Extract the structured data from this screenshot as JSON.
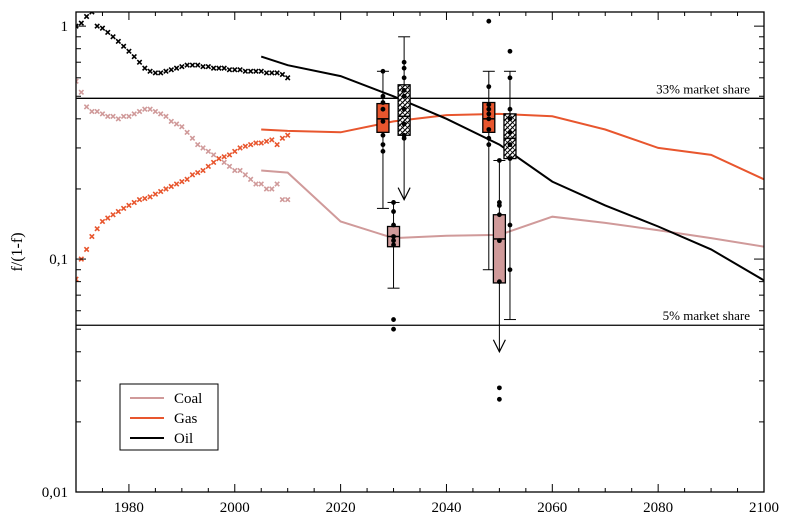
{
  "chart_data": {
    "type": "line",
    "title": "",
    "xlabel": "",
    "ylabel": "f/(1-f)",
    "xlim": [
      1970,
      2100
    ],
    "ylim": [
      0.01,
      1.15
    ],
    "yscale": "log",
    "grid": false,
    "legend_position": "bottom-left",
    "x_ticks": [
      1980,
      2000,
      2020,
      2040,
      2060,
      2080,
      2100
    ],
    "y_ticks": [
      {
        "value": 1,
        "label": "1"
      },
      {
        "value": 0.1,
        "label": "0,1"
      },
      {
        "value": 0.01,
        "label": "0,01"
      }
    ],
    "colors": {
      "Coal": "#d09a9a",
      "Gas": "#e8562e",
      "Oil": "#000000"
    },
    "hlines": [
      {
        "y": 0.49,
        "label": "33% market share"
      },
      {
        "y": 0.052,
        "label": "5% market share"
      }
    ],
    "series": [
      {
        "name": "Coal",
        "color": "#d09a9a",
        "x": [
          2005,
          2010,
          2020,
          2030,
          2040,
          2050,
          2060,
          2070,
          2080,
          2090,
          2100
        ],
        "y": [
          0.24,
          0.235,
          0.145,
          0.123,
          0.126,
          0.127,
          0.152,
          0.143,
          0.133,
          0.123,
          0.113
        ]
      },
      {
        "name": "Gas",
        "color": "#e8562e",
        "x": [
          2005,
          2010,
          2020,
          2030,
          2040,
          2050,
          2060,
          2070,
          2080,
          2090,
          2100
        ],
        "y": [
          0.36,
          0.355,
          0.35,
          0.39,
          0.415,
          0.42,
          0.41,
          0.36,
          0.3,
          0.28,
          0.22
        ]
      },
      {
        "name": "Oil",
        "color": "#000000",
        "x": [
          2005,
          2010,
          2020,
          2030,
          2040,
          2050,
          2060,
          2070,
          2080,
          2090,
          2100
        ],
        "y": [
          0.74,
          0.68,
          0.61,
          0.5,
          0.4,
          0.31,
          0.215,
          0.17,
          0.138,
          0.11,
          0.081
        ]
      }
    ],
    "historical": [
      {
        "name": "Coal",
        "color": "#d09a9a",
        "x": [
          1970,
          1971,
          1972,
          1973,
          1974,
          1975,
          1976,
          1977,
          1978,
          1979,
          1980,
          1981,
          1982,
          1983,
          1984,
          1985,
          1986,
          1987,
          1988,
          1989,
          1990,
          1991,
          1992,
          1993,
          1994,
          1995,
          1996,
          1997,
          1998,
          1999,
          2000,
          2001,
          2002,
          2003,
          2004,
          2005,
          2006,
          2007,
          2008,
          2009,
          2010
        ],
        "y": [
          0.58,
          0.52,
          0.45,
          0.43,
          0.43,
          0.42,
          0.41,
          0.41,
          0.4,
          0.41,
          0.41,
          0.42,
          0.43,
          0.44,
          0.44,
          0.43,
          0.42,
          0.41,
          0.39,
          0.38,
          0.37,
          0.35,
          0.33,
          0.31,
          0.3,
          0.29,
          0.28,
          0.27,
          0.26,
          0.25,
          0.24,
          0.24,
          0.23,
          0.22,
          0.21,
          0.21,
          0.2,
          0.2,
          0.21,
          0.18,
          0.18
        ]
      },
      {
        "name": "Gas",
        "color": "#e8562e",
        "x": [
          1970,
          1971,
          1972,
          1973,
          1974,
          1975,
          1976,
          1977,
          1978,
          1979,
          1980,
          1981,
          1982,
          1983,
          1984,
          1985,
          1986,
          1987,
          1988,
          1989,
          1990,
          1991,
          1992,
          1993,
          1994,
          1995,
          1996,
          1997,
          1998,
          1999,
          2000,
          2001,
          2002,
          2003,
          2004,
          2005,
          2006,
          2007,
          2008,
          2009,
          2010
        ],
        "y": [
          0.082,
          0.1,
          0.11,
          0.125,
          0.135,
          0.145,
          0.15,
          0.155,
          0.16,
          0.165,
          0.17,
          0.175,
          0.18,
          0.182,
          0.185,
          0.19,
          0.195,
          0.2,
          0.205,
          0.21,
          0.215,
          0.22,
          0.23,
          0.235,
          0.24,
          0.25,
          0.26,
          0.27,
          0.275,
          0.28,
          0.29,
          0.3,
          0.305,
          0.31,
          0.315,
          0.315,
          0.32,
          0.325,
          0.31,
          0.33,
          0.34
        ]
      },
      {
        "name": "Oil",
        "color": "#000000",
        "x": [
          1970,
          1971,
          1972,
          1973,
          1974,
          1975,
          1976,
          1977,
          1978,
          1979,
          1980,
          1981,
          1982,
          1983,
          1984,
          1985,
          1986,
          1987,
          1988,
          1989,
          1990,
          1991,
          1992,
          1993,
          1994,
          1995,
          1996,
          1997,
          1998,
          1999,
          2000,
          2001,
          2002,
          2003,
          2004,
          2005,
          2006,
          2007,
          2008,
          2009,
          2010
        ],
        "y": [
          1.0,
          1.03,
          1.1,
          1.15,
          1.0,
          0.98,
          0.94,
          0.9,
          0.86,
          0.82,
          0.78,
          0.74,
          0.7,
          0.66,
          0.64,
          0.63,
          0.63,
          0.64,
          0.65,
          0.66,
          0.67,
          0.68,
          0.68,
          0.68,
          0.67,
          0.67,
          0.66,
          0.66,
          0.66,
          0.65,
          0.65,
          0.65,
          0.64,
          0.64,
          0.64,
          0.64,
          0.63,
          0.63,
          0.63,
          0.62,
          0.6
        ]
      }
    ],
    "boxplots": [
      {
        "name": "Gas",
        "year": 2028,
        "color": "#e8562e",
        "pattern": "solid",
        "whisker_low": 0.165,
        "q1": 0.35,
        "median": 0.4,
        "q3": 0.465,
        "whisker_high": 0.64,
        "arrow": false,
        "points": [
          0.64,
          0.5,
          0.47,
          0.44,
          0.39,
          0.34,
          0.31,
          0.29
        ]
      },
      {
        "name": "Oil",
        "year": 2032,
        "color": "#ffffff",
        "pattern": "hatch",
        "whisker_low": 0.18,
        "q1": 0.34,
        "median": 0.41,
        "q3": 0.56,
        "whisker_high": 0.9,
        "arrow": true,
        "points": [
          0.7,
          0.66,
          0.6,
          0.53,
          0.5,
          0.44,
          0.38,
          0.34,
          0.33
        ]
      },
      {
        "name": "Coal",
        "year": 2030,
        "color": "#d09a9a",
        "pattern": "solid",
        "whisker_low": 0.075,
        "q1": 0.113,
        "median": 0.125,
        "q3": 0.138,
        "whisker_high": 0.175,
        "arrow": false,
        "points": [
          0.175,
          0.16,
          0.14,
          0.125,
          0.12,
          0.115,
          0.055,
          0.05
        ]
      },
      {
        "name": "Gas",
        "year": 2048,
        "color": "#e8562e",
        "pattern": "solid",
        "whisker_low": 0.09,
        "q1": 0.35,
        "median": 0.4,
        "q3": 0.47,
        "whisker_high": 0.64,
        "arrow": false,
        "points": [
          1.05,
          0.55,
          0.46,
          0.44,
          0.42,
          0.4,
          0.36,
          0.33,
          0.31
        ]
      },
      {
        "name": "Oil",
        "year": 2052,
        "color": "#ffffff",
        "pattern": "hatch",
        "whisker_low": 0.055,
        "q1": 0.27,
        "median": 0.33,
        "q3": 0.42,
        "whisker_high": 0.64,
        "arrow": false,
        "points": [
          0.78,
          0.6,
          0.44,
          0.4,
          0.35,
          0.31,
          0.27,
          0.14,
          0.09
        ]
      },
      {
        "name": "Coal",
        "year": 2050,
        "color": "#d09a9a",
        "pattern": "solid",
        "whisker_low": 0.04,
        "q1": 0.079,
        "median": 0.122,
        "q3": 0.155,
        "whisker_high": 0.265,
        "arrow": true,
        "points": [
          0.265,
          0.175,
          0.17,
          0.155,
          0.12,
          0.08,
          0.028,
          0.025
        ]
      }
    ]
  }
}
